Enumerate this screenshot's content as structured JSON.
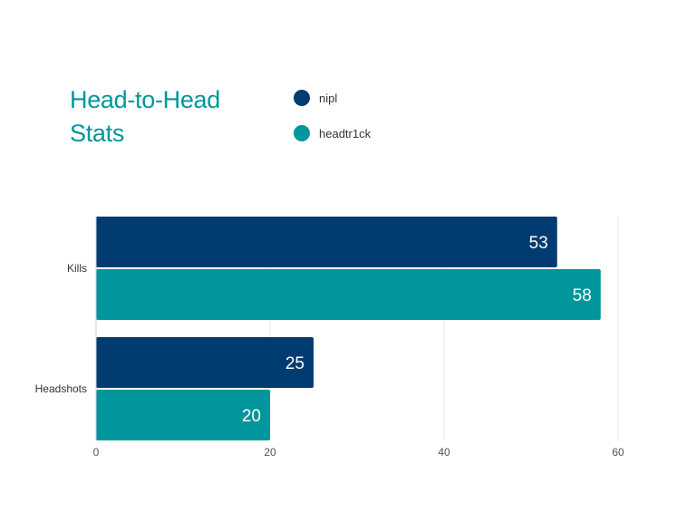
{
  "chart_data": {
    "type": "bar",
    "orientation": "horizontal",
    "title": "Head-to-Head Stats",
    "categories": [
      "Kills",
      "Headshots"
    ],
    "series": [
      {
        "name": "nipl",
        "color": "#003c71",
        "values": [
          53,
          25
        ]
      },
      {
        "name": "headtr1ck",
        "color": "#00969b",
        "values": [
          58,
          20
        ]
      }
    ],
    "xlim": [
      0,
      60
    ],
    "xticks": [
      0,
      20,
      40,
      60
    ],
    "grid": true,
    "legend": "top"
  }
}
